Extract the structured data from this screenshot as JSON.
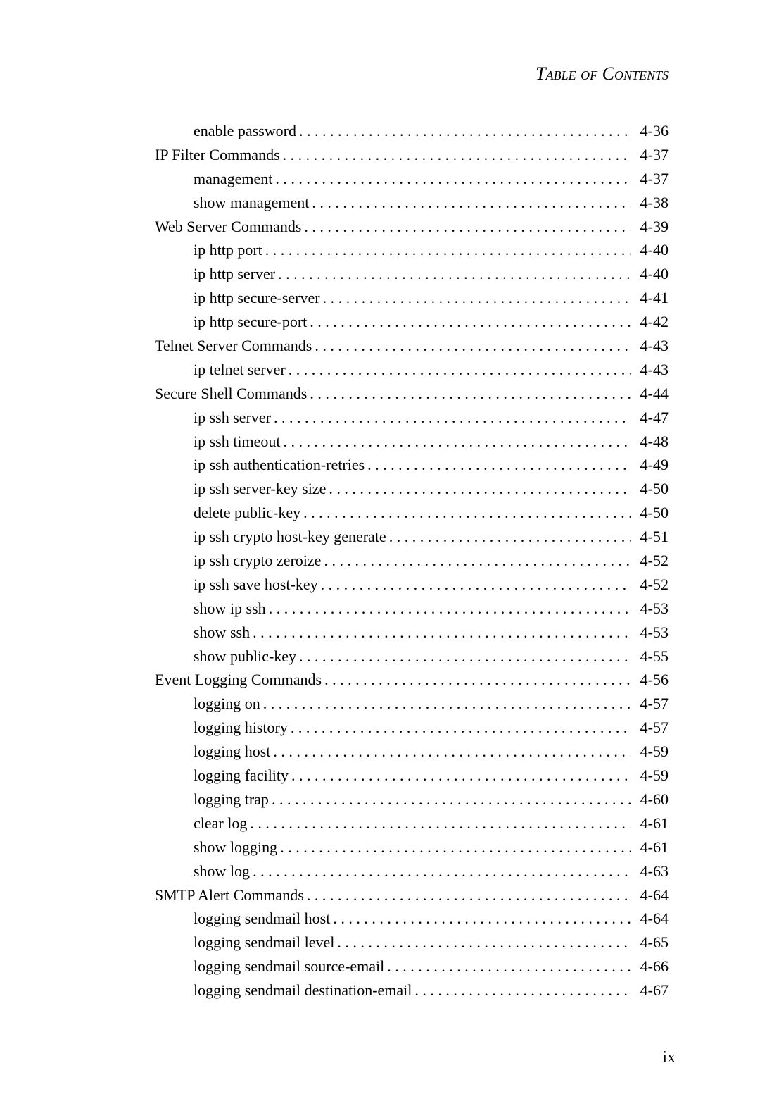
{
  "header_title": "Table of Contents",
  "page_number": "ix",
  "entries": [
    {
      "level": 2,
      "label": "enable password",
      "page": "4-36"
    },
    {
      "level": 1,
      "label": "IP Filter Commands",
      "page": "4-37"
    },
    {
      "level": 2,
      "label": "management",
      "page": "4-37"
    },
    {
      "level": 2,
      "label": "show management",
      "page": "4-38"
    },
    {
      "level": 1,
      "label": "Web Server Commands",
      "page": "4-39"
    },
    {
      "level": 2,
      "label": "ip http port",
      "page": "4-40"
    },
    {
      "level": 2,
      "label": "ip http server",
      "page": "4-40"
    },
    {
      "level": 2,
      "label": "ip http secure-server",
      "page": "4-41"
    },
    {
      "level": 2,
      "label": "ip http secure-port",
      "page": "4-42"
    },
    {
      "level": 1,
      "label": "Telnet Server Commands",
      "page": "4-43"
    },
    {
      "level": 2,
      "label": "ip telnet server",
      "page": "4-43"
    },
    {
      "level": 1,
      "label": "Secure Shell Commands",
      "page": "4-44"
    },
    {
      "level": 2,
      "label": "ip ssh server",
      "page": "4-47"
    },
    {
      "level": 2,
      "label": "ip ssh timeout",
      "page": "4-48"
    },
    {
      "level": 2,
      "label": "ip ssh authentication-retries",
      "page": "4-49"
    },
    {
      "level": 2,
      "label": "ip ssh server-key size",
      "page": "4-50"
    },
    {
      "level": 2,
      "label": "delete public-key",
      "page": "4-50"
    },
    {
      "level": 2,
      "label": "ip ssh crypto host-key generate",
      "page": "4-51"
    },
    {
      "level": 2,
      "label": "ip ssh crypto zeroize",
      "page": "4-52"
    },
    {
      "level": 2,
      "label": "ip ssh save host-key",
      "page": "4-52"
    },
    {
      "level": 2,
      "label": "show ip ssh",
      "page": "4-53"
    },
    {
      "level": 2,
      "label": "show ssh",
      "page": "4-53"
    },
    {
      "level": 2,
      "label": "show public-key",
      "page": "4-55"
    },
    {
      "level": 1,
      "label": "Event Logging Commands",
      "page": "4-56"
    },
    {
      "level": 2,
      "label": "logging on",
      "page": "4-57"
    },
    {
      "level": 2,
      "label": "logging history",
      "page": "4-57"
    },
    {
      "level": 2,
      "label": "logging host",
      "page": "4-59"
    },
    {
      "level": 2,
      "label": "logging facility",
      "page": "4-59"
    },
    {
      "level": 2,
      "label": "logging trap",
      "page": "4-60"
    },
    {
      "level": 2,
      "label": "clear log",
      "page": "4-61"
    },
    {
      "level": 2,
      "label": "show logging",
      "page": "4-61"
    },
    {
      "level": 2,
      "label": "show log",
      "page": "4-63"
    },
    {
      "level": 1,
      "label": "SMTP Alert Commands",
      "page": "4-64"
    },
    {
      "level": 2,
      "label": "logging sendmail host",
      "page": "4-64"
    },
    {
      "level": 2,
      "label": "logging sendmail level",
      "page": "4-65"
    },
    {
      "level": 2,
      "label": "logging sendmail source-email",
      "page": "4-66"
    },
    {
      "level": 2,
      "label": "logging sendmail destination-email",
      "page": "4-67"
    }
  ]
}
